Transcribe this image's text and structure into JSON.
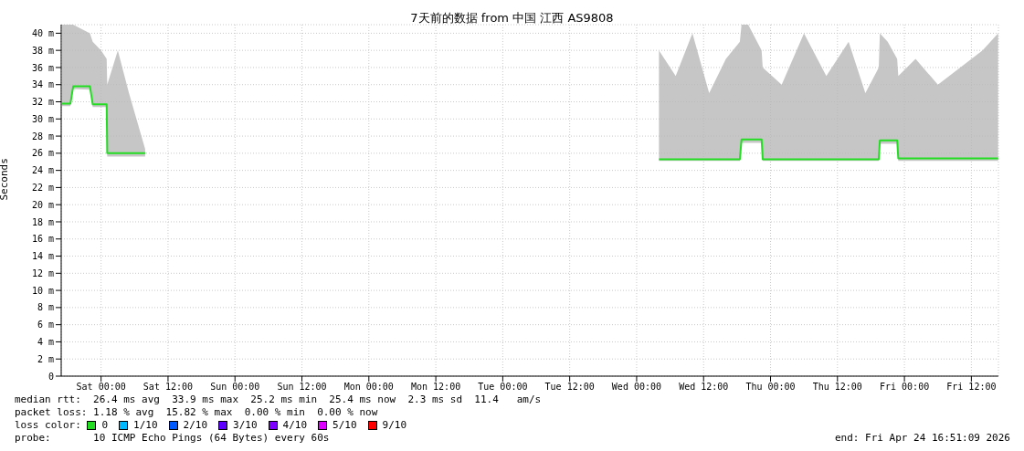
{
  "chart_data": {
    "type": "line",
    "title": "7天前的数据 from 中国 江西 AS9808",
    "ylabel": "Seconds",
    "x": [
      "2026-04-17T17:00",
      "2026-04-17T18:30",
      "2026-04-17T19:00",
      "2026-04-17T22:00",
      "2026-04-17T22:30",
      "2026-04-18T00:00",
      "2026-04-18T01:00",
      "2026-04-18T01:06",
      "2026-04-18T03:00",
      "2026-04-18T05:00",
      "2026-04-18T07:54",
      "2026-04-20T02:00",
      "2026-04-22T04:00",
      "2026-04-22T07:00",
      "2026-04-22T10:00",
      "2026-04-22T13:00",
      "2026-04-22T16:00",
      "2026-04-22T18:30",
      "2026-04-22T18:48",
      "2026-04-22T20:00",
      "2026-04-22T22:24",
      "2026-04-22T22:36",
      "2026-04-23T02:00",
      "2026-04-23T06:00",
      "2026-04-23T10:00",
      "2026-04-23T14:00",
      "2026-04-23T17:00",
      "2026-04-23T19:24",
      "2026-04-23T19:36",
      "2026-04-23T21:00",
      "2026-04-23T22:42",
      "2026-04-23T22:54",
      "2026-04-24T02:00",
      "2026-04-24T06:00",
      "2026-04-24T10:00",
      "2026-04-24T14:00",
      "2026-04-24T16:48"
    ],
    "xlim": [
      "2026-04-17T16:51",
      "2026-04-24T16:51"
    ],
    "xticks": [
      {
        "value": "2026-04-18T00:00",
        "label": "Sat 00:00"
      },
      {
        "value": "2026-04-18T12:00",
        "label": "Sat 12:00"
      },
      {
        "value": "2026-04-19T00:00",
        "label": "Sun 00:00"
      },
      {
        "value": "2026-04-19T12:00",
        "label": "Sun 12:00"
      },
      {
        "value": "2026-04-20T00:00",
        "label": "Mon 00:00"
      },
      {
        "value": "2026-04-20T12:00",
        "label": "Mon 12:00"
      },
      {
        "value": "2026-04-21T00:00",
        "label": "Tue 00:00"
      },
      {
        "value": "2026-04-21T12:00",
        "label": "Tue 12:00"
      },
      {
        "value": "2026-04-22T00:00",
        "label": "Wed 00:00"
      },
      {
        "value": "2026-04-22T12:00",
        "label": "Wed 12:00"
      },
      {
        "value": "2026-04-23T00:00",
        "label": "Thu 00:00"
      },
      {
        "value": "2026-04-23T12:00",
        "label": "Thu 12:00"
      },
      {
        "value": "2026-04-24T00:00",
        "label": "Fri 00:00"
      },
      {
        "value": "2026-04-24T12:00",
        "label": "Fri 12:00"
      }
    ],
    "ylim": [
      0,
      41
    ],
    "yticks": [
      0,
      {
        "value": 2,
        "label": "2 m"
      },
      {
        "value": 4,
        "label": "4 m"
      },
      {
        "value": 6,
        "label": "6 m"
      },
      {
        "value": 8,
        "label": "8 m"
      },
      {
        "value": 10,
        "label": "10 m"
      },
      {
        "value": 12,
        "label": "12 m"
      },
      {
        "value": 14,
        "label": "14 m"
      },
      {
        "value": 16,
        "label": "16 m"
      },
      {
        "value": 18,
        "label": "18 m"
      },
      {
        "value": 20,
        "label": "20 m"
      },
      {
        "value": 22,
        "label": "22 m"
      },
      {
        "value": 24,
        "label": "24 m"
      },
      {
        "value": 26,
        "label": "26 m"
      },
      {
        "value": 28,
        "label": "28 m"
      },
      {
        "value": 30,
        "label": "30 m"
      },
      {
        "value": 32,
        "label": "32 m"
      },
      {
        "value": 34,
        "label": "34 m"
      },
      {
        "value": 36,
        "label": "36 m"
      },
      {
        "value": 38,
        "label": "38 m"
      },
      {
        "value": 40,
        "label": "40 m"
      }
    ],
    "grid": true,
    "legend": "bottom",
    "legend_title": "loss color:",
    "series": [
      {
        "name": "0",
        "color": "#22dd22",
        "values": [
          31.8,
          31.8,
          33.8,
          33.8,
          31.7,
          31.7,
          31.7,
          26,
          26,
          26,
          26,
          null,
          25.3,
          25.3,
          25.3,
          25.3,
          25.3,
          25.3,
          27.6,
          27.6,
          27.6,
          25.3,
          25.3,
          25.3,
          25.3,
          25.3,
          25.3,
          25.3,
          27.5,
          27.5,
          27.5,
          25.4,
          25.4,
          25.4,
          25.4,
          25.4,
          25.4
        ],
        "lower": [
          31.5,
          31.5,
          33.5,
          33.4,
          31.4,
          31.4,
          31.4,
          25.6,
          25.6,
          25.6,
          25.6,
          null,
          25.1,
          25.1,
          25.1,
          25.1,
          25.1,
          25.1,
          27.2,
          27.2,
          27.2,
          25.1,
          25.1,
          25.1,
          25.1,
          25.1,
          25.1,
          25.1,
          27.1,
          27.1,
          27.1,
          25.1,
          25.1,
          25.1,
          25.1,
          25.1,
          25.1
        ],
        "upper": [
          41,
          41,
          41,
          40,
          39,
          38,
          37,
          34,
          38,
          33,
          26.5,
          null,
          38,
          35,
          40,
          33,
          37,
          39,
          41,
          41,
          38,
          36,
          34,
          40,
          35,
          39,
          33,
          36,
          40,
          39,
          37,
          35,
          37,
          34,
          36,
          38,
          40
        ]
      },
      {
        "name": "1/10",
        "color": "#00b8ff",
        "values": [
          null,
          null,
          null,
          null,
          null,
          null,
          null,
          null,
          null,
          null,
          null,
          null,
          null,
          null,
          null,
          null,
          null,
          null,
          null,
          null,
          null,
          null,
          null,
          null,
          null,
          null,
          null,
          null,
          null,
          null,
          null,
          null,
          null,
          null,
          null,
          null,
          null
        ]
      },
      {
        "name": "2/10",
        "color": "#0059ff",
        "values": [
          null,
          null,
          null,
          null,
          null,
          null,
          null,
          null,
          null,
          null,
          null,
          null,
          null,
          null,
          null,
          null,
          null,
          null,
          null,
          null,
          null,
          null,
          null,
          null,
          null,
          null,
          null,
          null,
          null,
          null,
          null,
          null,
          null,
          null,
          null,
          null,
          null
        ]
      },
      {
        "name": "3/10",
        "color": "#5e00ff",
        "values": [
          null,
          null,
          null,
          null,
          null,
          null,
          null,
          null,
          null,
          null,
          null,
          null,
          null,
          null,
          null,
          null,
          null,
          null,
          null,
          null,
          null,
          null,
          null,
          null,
          null,
          null,
          null,
          null,
          null,
          null,
          null,
          null,
          null,
          null,
          null,
          null,
          null
        ]
      },
      {
        "name": "4/10",
        "color": "#7e00ff",
        "values": [
          null,
          null,
          null,
          null,
          null,
          null,
          null,
          null,
          null,
          null,
          null,
          null,
          null,
          null,
          null,
          null,
          null,
          null,
          null,
          null,
          null,
          null,
          null,
          null,
          null,
          null,
          null,
          null,
          null,
          null,
          null,
          null,
          null,
          null,
          null,
          null,
          null
        ]
      },
      {
        "name": "5/10",
        "color": "#dd00ff",
        "values": [
          null,
          null,
          null,
          null,
          null,
          null,
          null,
          null,
          null,
          null,
          null,
          null,
          null,
          null,
          null,
          null,
          null,
          null,
          null,
          null,
          null,
          null,
          null,
          null,
          null,
          null,
          null,
          null,
          null,
          null,
          null,
          null,
          null,
          null,
          null,
          null,
          null
        ]
      },
      {
        "name": "9/10",
        "color": "#ff0000",
        "values": [
          null,
          null,
          null,
          null,
          null,
          null,
          null,
          null,
          null,
          null,
          null,
          null,
          null,
          null,
          null,
          null,
          null,
          null,
          null,
          null,
          null,
          null,
          null,
          null,
          null,
          null,
          null,
          null,
          null,
          null,
          null,
          null,
          null,
          null,
          null,
          null,
          null
        ]
      }
    ],
    "annotations": [
      "median rtt:  26.4 ms avg  33.9 ms max  25.2 ms min  25.4 ms now  2.3 ms sd  11.4   am/s",
      "packet loss: 1.18 % avg  15.82 % max  0.00 % min  0.00 % now",
      "probe:       10 ICMP Echo Pings (64 Bytes) every 60s",
      "end: Fri Apr 24 16:51:09 2026"
    ]
  }
}
